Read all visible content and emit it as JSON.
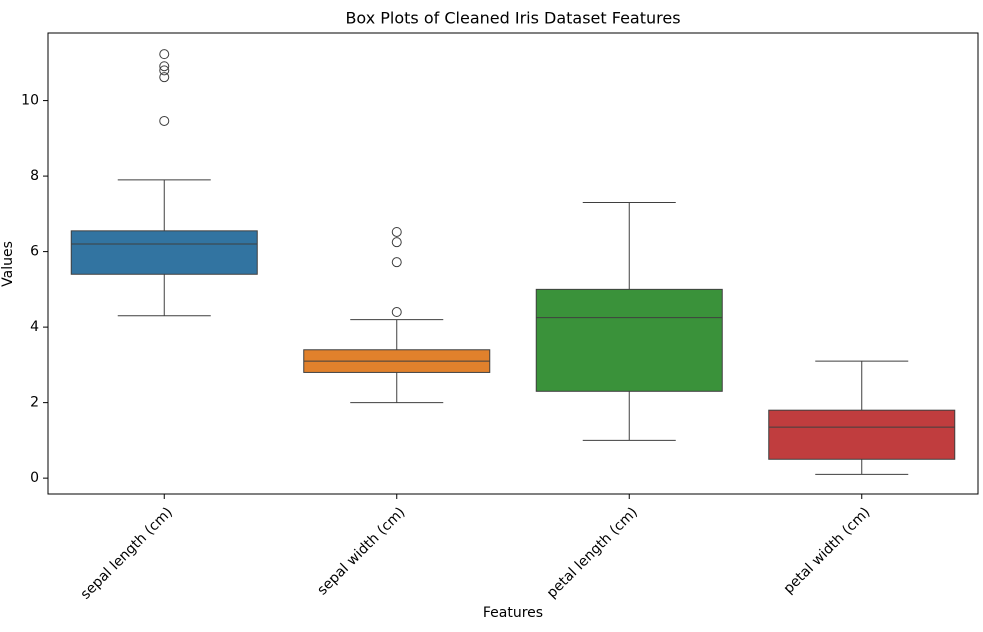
{
  "chart_data": {
    "type": "box",
    "title": "Box Plots of Cleaned Iris Dataset Features",
    "x_label": "Features",
    "y_label": "Values",
    "categories": [
      "sepal length (cm)",
      "sepal width (cm)",
      "petal length (cm)",
      "petal width (cm)"
    ],
    "boxes": [
      {
        "color": "#3274a1",
        "min": 4.3,
        "q1": 5.4,
        "median": 6.2,
        "q3": 6.55,
        "max": 7.9,
        "outliers": [
          11.23,
          10.91,
          10.8,
          10.62,
          9.46
        ]
      },
      {
        "color": "#e1812c",
        "min": 2.0,
        "q1": 2.8,
        "median": 3.1,
        "q3": 3.4,
        "max": 4.2,
        "outliers": [
          4.4,
          5.72,
          6.25,
          6.52
        ]
      },
      {
        "color": "#3a923a",
        "min": 1.0,
        "q1": 2.3,
        "median": 4.25,
        "q3": 5.0,
        "max": 7.3,
        "outliers": []
      },
      {
        "color": "#c03d3e",
        "min": 0.1,
        "q1": 0.5,
        "median": 1.35,
        "q3": 1.8,
        "max": 3.1,
        "outliers": []
      }
    ],
    "ylim": [
      -0.42,
      11.79
    ],
    "yticks": [
      0,
      2,
      4,
      6,
      8,
      10
    ],
    "grid": false
  }
}
